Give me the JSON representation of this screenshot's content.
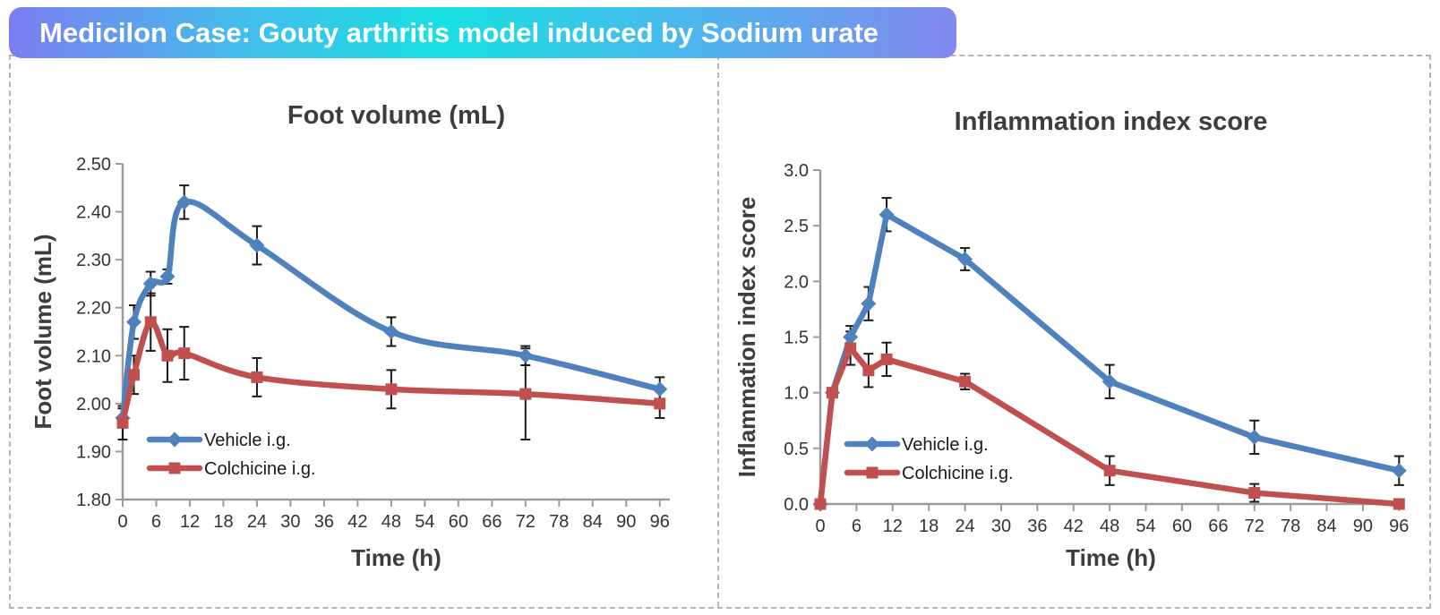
{
  "banner": {
    "text": "Medicilon Case: Gouty arthritis model induced by Sodium urate",
    "gradient": [
      "#7b7df2",
      "#17e0e1",
      "#8289ee"
    ],
    "text_color": "#ffffff"
  },
  "colors": {
    "vehicle": "#4f81bd",
    "colchicine": "#c0504d",
    "error_bar": "#1a1a1a",
    "axis": "#9b9b9b",
    "tick_text": "#333333",
    "title_text": "#3d3d3d",
    "panel_border": "#b5b5b5"
  },
  "chart_data": [
    {
      "type": "line",
      "title": "Foot volume (mL)",
      "xlabel": "Time (h)",
      "ylabel": "Foot volume (mL)",
      "x": [
        0,
        2,
        5,
        8,
        11,
        24,
        48,
        72,
        96
      ],
      "xticks": [
        0,
        6,
        12,
        18,
        24,
        30,
        36,
        42,
        48,
        54,
        60,
        66,
        72,
        78,
        84,
        90,
        96
      ],
      "ylim": [
        1.8,
        2.5
      ],
      "yticks": [
        "1.80",
        "1.90",
        "2.00",
        "2.10",
        "2.20",
        "2.30",
        "2.40",
        "2.50"
      ],
      "grid": false,
      "smooth": true,
      "legend_position": "inside-bottom-left",
      "series": [
        {
          "name": "Vehicle i.g.",
          "marker": "diamond",
          "color": "#4f81bd",
          "values": [
            1.97,
            2.17,
            2.25,
            2.265,
            2.42,
            2.33,
            2.15,
            2.1,
            2.03
          ],
          "errors": [
            0.02,
            0.035,
            0.025,
            0.015,
            0.035,
            0.04,
            0.03,
            0.02,
            0.025
          ]
        },
        {
          "name": "Colchicine i.g.",
          "marker": "square",
          "color": "#c0504d",
          "values": [
            1.96,
            2.06,
            2.17,
            2.1,
            2.105,
            2.055,
            2.03,
            2.02,
            2.0
          ],
          "errors": [
            0.035,
            0.04,
            0.06,
            0.055,
            0.055,
            0.04,
            0.04,
            0.095,
            0.03
          ]
        }
      ]
    },
    {
      "type": "line",
      "title": "Inflammation index score",
      "xlabel": "Time (h)",
      "ylabel": "Inflammation index score",
      "x": [
        0,
        2,
        5,
        8,
        11,
        24,
        48,
        72,
        96
      ],
      "xticks": [
        0,
        6,
        12,
        18,
        24,
        30,
        36,
        42,
        48,
        54,
        60,
        66,
        72,
        78,
        84,
        90,
        96
      ],
      "ylim": [
        0.0,
        3.0
      ],
      "yticks": [
        "0.0",
        "0.5",
        "1.0",
        "1.5",
        "2.0",
        "2.5",
        "3.0"
      ],
      "grid": false,
      "smooth": false,
      "legend_position": "inside-bottom-left",
      "series": [
        {
          "name": "Vehicle i.g.",
          "marker": "diamond",
          "color": "#4f81bd",
          "values": [
            0.0,
            1.0,
            1.5,
            1.8,
            2.6,
            2.2,
            1.1,
            0.6,
            0.3
          ],
          "errors": [
            0,
            0,
            0.1,
            0.15,
            0.15,
            0.1,
            0.15,
            0.15,
            0.13
          ]
        },
        {
          "name": "Colchicine i.g.",
          "marker": "square",
          "color": "#c0504d",
          "values": [
            0.0,
            1.0,
            1.4,
            1.2,
            1.3,
            1.1,
            0.3,
            0.1,
            0.0
          ],
          "errors": [
            0,
            0,
            0.15,
            0.15,
            0.15,
            0.07,
            0.13,
            0.08,
            0.03
          ]
        }
      ]
    }
  ]
}
